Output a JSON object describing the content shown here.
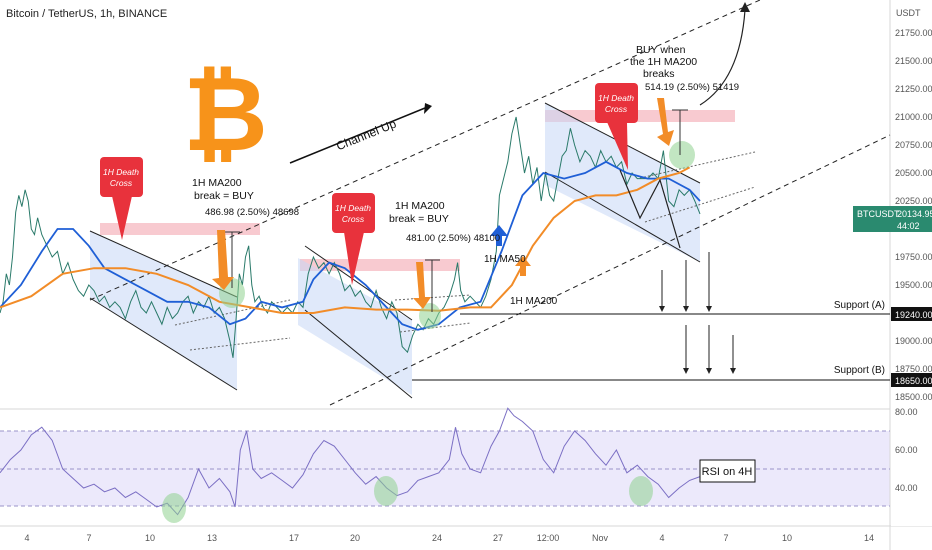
{
  "header": {
    "symbol_title": "Bitcoin / TetherUS, 1h, BINANCE"
  },
  "currency_unit": "USDT",
  "colors": {
    "price": "#2a7a6a",
    "ma50": "#1f5fd6",
    "ma200": "#f28c28",
    "death_cross": "#e8323c",
    "zone": "#f4a6b0",
    "channel_fill": "#c7d7f5",
    "rsi": "#7b6fc4",
    "rsi_band": "#ece9fb",
    "buy_circle": "#8fd18f"
  },
  "price_axis": {
    "ticks": [
      "21750.00",
      "21500.00",
      "21250.00",
      "21000.00",
      "20750.00",
      "20500.00",
      "20250.00",
      "19750.00",
      "19500.00",
      "19000.00",
      "18750.00",
      "18500.00"
    ],
    "current_symbol": "BTCUSDT",
    "current_price": "20134.95",
    "countdown": "44:02",
    "support_a_price": "19240.00",
    "support_b_price": "18650.00"
  },
  "rsi_axis": {
    "ticks": [
      "80.00",
      "60.00",
      "40.00"
    ]
  },
  "time_axis": {
    "ticks": [
      "4",
      "7",
      "10",
      "13",
      "17",
      "20",
      "24",
      "27",
      "12:00",
      "Nov",
      "4",
      "7",
      "10",
      "14"
    ]
  },
  "annotations": {
    "death_cross_1": [
      "1H Death",
      "Cross"
    ],
    "death_cross_2": [
      "1H Death",
      "Cross"
    ],
    "death_cross_3": [
      "1H Death",
      "Cross"
    ],
    "ma200_break_1": [
      "1H MA200",
      "break = BUY"
    ],
    "ma200_break_2": [
      "1H MA200",
      "break = BUY"
    ],
    "measure_1": "486.98 (2.50%) 48698",
    "measure_2": "481.00 (2.50%) 48100",
    "measure_3": "514.19 (2.50%) 51419",
    "buy_when": [
      "BUY when",
      "the 1H MA200",
      "breaks"
    ],
    "channel_up": "Channel Up",
    "ma50_label": "1H MA50",
    "ma200_label": "1H MA200",
    "support_a": "Support (A)",
    "support_b": "Support (B)",
    "rsi_box": "RSI on 4H"
  },
  "chart_data": {
    "type": "line",
    "title": "Bitcoin / TetherUS, 1h, BINANCE",
    "x_labels": [
      "4",
      "7",
      "10",
      "13",
      "17",
      "20",
      "24",
      "27",
      "12:00",
      "Nov",
      "4",
      "7",
      "10",
      "14"
    ],
    "ylim": [
      18400,
      22000
    ],
    "series": [
      {
        "name": "BTCUSDT",
        "points": [
          [
            0,
            19250
          ],
          [
            3,
            19350
          ],
          [
            6,
            19600
          ],
          [
            9,
            19500
          ],
          [
            12,
            19750
          ],
          [
            15,
            20150
          ],
          [
            18,
            20300
          ],
          [
            21,
            20200
          ],
          [
            24,
            20350
          ],
          [
            27,
            20250
          ],
          [
            30,
            20000
          ],
          [
            33,
            19950
          ],
          [
            36,
            20100
          ],
          [
            40,
            19950
          ],
          [
            45,
            19850
          ],
          [
            50,
            19750
          ],
          [
            55,
            19800
          ],
          [
            60,
            19600
          ],
          [
            65,
            19700
          ],
          [
            70,
            19550
          ],
          [
            75,
            19450
          ],
          [
            80,
            19400
          ],
          [
            85,
            19500
          ],
          [
            90,
            19450
          ],
          [
            95,
            19350
          ],
          [
            100,
            19400
          ],
          [
            105,
            19300
          ],
          [
            110,
            19350
          ],
          [
            115,
            19300
          ],
          [
            120,
            19200
          ],
          [
            125,
            19350
          ],
          [
            130,
            19450
          ],
          [
            135,
            19300
          ],
          [
            140,
            19250
          ],
          [
            145,
            19350
          ],
          [
            150,
            19250
          ],
          [
            155,
            19150
          ],
          [
            160,
            19300
          ],
          [
            165,
            19200
          ],
          [
            170,
            19250
          ],
          [
            175,
            19350
          ],
          [
            180,
            19400
          ],
          [
            185,
            19250
          ],
          [
            190,
            19350
          ],
          [
            195,
            19300
          ],
          [
            200,
            19400
          ],
          [
            205,
            19250
          ],
          [
            210,
            19300
          ],
          [
            215,
            19200
          ],
          [
            220,
            19000
          ],
          [
            223,
            18850
          ],
          [
            226,
            19200
          ],
          [
            229,
            19600
          ],
          [
            232,
            19500
          ],
          [
            235,
            19750
          ],
          [
            238,
            19850
          ],
          [
            241,
            19500
          ],
          [
            244,
            19350
          ],
          [
            248,
            19400
          ],
          [
            252,
            19300
          ],
          [
            256,
            19250
          ],
          [
            260,
            19350
          ],
          [
            265,
            19300
          ],
          [
            270,
            19250
          ],
          [
            275,
            19300
          ],
          [
            280,
            19250
          ],
          [
            285,
            19350
          ],
          [
            290,
            19300
          ],
          [
            295,
            19600
          ],
          [
            300,
            19750
          ],
          [
            305,
            19650
          ],
          [
            310,
            19700
          ],
          [
            315,
            19600
          ],
          [
            320,
            19700
          ],
          [
            325,
            19600
          ],
          [
            330,
            19450
          ],
          [
            335,
            19500
          ],
          [
            340,
            19400
          ],
          [
            345,
            19450
          ],
          [
            350,
            19350
          ],
          [
            355,
            19300
          ],
          [
            360,
            19450
          ],
          [
            365,
            19300
          ],
          [
            370,
            19200
          ],
          [
            375,
            19350
          ],
          [
            380,
            19250
          ],
          [
            385,
            18950
          ],
          [
            390,
            18900
          ],
          [
            395,
            19050
          ],
          [
            400,
            19150
          ],
          [
            405,
            19100
          ],
          [
            410,
            19200
          ],
          [
            415,
            19150
          ],
          [
            420,
            19250
          ],
          [
            425,
            19300
          ],
          [
            430,
            19400
          ],
          [
            435,
            19550
          ],
          [
            438,
            19700
          ],
          [
            441,
            19450
          ],
          [
            445,
            19350
          ],
          [
            450,
            19400
          ],
          [
            455,
            19350
          ],
          [
            460,
            19300
          ],
          [
            465,
            19400
          ],
          [
            470,
            19550
          ],
          [
            475,
            19800
          ],
          [
            478,
            20300
          ],
          [
            482,
            20450
          ],
          [
            486,
            20600
          ],
          [
            490,
            20850
          ],
          [
            494,
            21000
          ],
          [
            498,
            20750
          ],
          [
            502,
            20500
          ],
          [
            506,
            20650
          ],
          [
            510,
            20400
          ],
          [
            514,
            20550
          ],
          [
            518,
            20250
          ],
          [
            522,
            20500
          ],
          [
            526,
            20300
          ],
          [
            530,
            20250
          ],
          [
            534,
            20450
          ],
          [
            538,
            20650
          ],
          [
            542,
            20700
          ],
          [
            546,
            20900
          ],
          [
            550,
            20750
          ],
          [
            555,
            20600
          ],
          [
            560,
            20700
          ],
          [
            565,
            20650
          ],
          [
            570,
            20550
          ],
          [
            575,
            20700
          ],
          [
            580,
            20600
          ],
          [
            585,
            20650
          ],
          [
            590,
            20550
          ],
          [
            595,
            20600
          ],
          [
            600,
            20400
          ],
          [
            605,
            20500
          ],
          [
            610,
            20450
          ],
          [
            615,
            20450
          ],
          [
            620,
            20450
          ],
          [
            625,
            20500
          ],
          [
            630,
            20450
          ],
          [
            635,
            20700
          ],
          [
            640,
            20250
          ],
          [
            645,
            20200
          ],
          [
            650,
            20350
          ],
          [
            655,
            20300
          ],
          [
            660,
            20350
          ],
          [
            665,
            20250
          ],
          [
            670,
            20134.95
          ]
        ]
      },
      {
        "name": "1H MA50",
        "points": [
          [
            0,
            19300
          ],
          [
            20,
            19500
          ],
          [
            40,
            19800
          ],
          [
            55,
            20000
          ],
          [
            70,
            20000
          ],
          [
            85,
            19850
          ],
          [
            100,
            19650
          ],
          [
            120,
            19550
          ],
          [
            140,
            19450
          ],
          [
            160,
            19350
          ],
          [
            180,
            19350
          ],
          [
            200,
            19300
          ],
          [
            220,
            19150
          ],
          [
            235,
            19200
          ],
          [
            250,
            19350
          ],
          [
            270,
            19300
          ],
          [
            290,
            19350
          ],
          [
            300,
            19550
          ],
          [
            315,
            19700
          ],
          [
            330,
            19650
          ],
          [
            350,
            19500
          ],
          [
            370,
            19300
          ],
          [
            385,
            19150
          ],
          [
            400,
            19100
          ],
          [
            420,
            19150
          ],
          [
            440,
            19300
          ],
          [
            460,
            19350
          ],
          [
            480,
            19800
          ],
          [
            500,
            20300
          ],
          [
            520,
            20500
          ],
          [
            540,
            20450
          ],
          [
            560,
            20500
          ],
          [
            580,
            20600
          ],
          [
            600,
            20500
          ],
          [
            620,
            20450
          ],
          [
            640,
            20450
          ],
          [
            660,
            20350
          ],
          [
            670,
            20250
          ]
        ]
      },
      {
        "name": "1H MA200",
        "points": [
          [
            0,
            19300
          ],
          [
            30,
            19400
          ],
          [
            60,
            19600
          ],
          [
            90,
            19650
          ],
          [
            120,
            19650
          ],
          [
            150,
            19600
          ],
          [
            180,
            19500
          ],
          [
            210,
            19350
          ],
          [
            240,
            19300
          ],
          [
            270,
            19250
          ],
          [
            300,
            19250
          ],
          [
            330,
            19300
          ],
          [
            360,
            19280
          ],
          [
            390,
            19280
          ],
          [
            420,
            19270
          ],
          [
            450,
            19300
          ],
          [
            470,
            19300
          ],
          [
            490,
            19500
          ],
          [
            510,
            19850
          ],
          [
            530,
            20100
          ],
          [
            550,
            20250
          ],
          [
            570,
            20300
          ],
          [
            590,
            20300
          ],
          [
            610,
            20350
          ],
          [
            630,
            20450
          ],
          [
            650,
            20500
          ],
          [
            660,
            20550
          ]
        ]
      }
    ]
  },
  "rsi_data": {
    "ylim": [
      20,
      85
    ],
    "overbought": 70,
    "mid": 50,
    "oversold": 30,
    "points": [
      [
        0,
        48
      ],
      [
        10,
        55
      ],
      [
        20,
        60
      ],
      [
        30,
        68
      ],
      [
        40,
        72
      ],
      [
        50,
        65
      ],
      [
        60,
        50
      ],
      [
        70,
        45
      ],
      [
        80,
        40
      ],
      [
        90,
        42
      ],
      [
        100,
        38
      ],
      [
        110,
        40
      ],
      [
        120,
        35
      ],
      [
        130,
        38
      ],
      [
        140,
        34
      ],
      [
        150,
        30
      ],
      [
        160,
        32
      ],
      [
        170,
        26
      ],
      [
        180,
        35
      ],
      [
        190,
        50
      ],
      [
        200,
        40
      ],
      [
        210,
        45
      ],
      [
        220,
        38
      ],
      [
        225,
        30
      ],
      [
        230,
        60
      ],
      [
        236,
        70
      ],
      [
        242,
        50
      ],
      [
        250,
        45
      ],
      [
        260,
        48
      ],
      [
        270,
        44
      ],
      [
        280,
        40
      ],
      [
        290,
        47
      ],
      [
        300,
        58
      ],
      [
        310,
        65
      ],
      [
        320,
        62
      ],
      [
        330,
        55
      ],
      [
        340,
        48
      ],
      [
        350,
        42
      ],
      [
        360,
        46
      ],
      [
        370,
        40
      ],
      [
        380,
        36
      ],
      [
        390,
        38
      ],
      [
        400,
        44
      ],
      [
        410,
        46
      ],
      [
        420,
        48
      ],
      [
        430,
        55
      ],
      [
        436,
        72
      ],
      [
        442,
        58
      ],
      [
        450,
        50
      ],
      [
        460,
        48
      ],
      [
        470,
        62
      ],
      [
        478,
        70
      ],
      [
        486,
        82
      ],
      [
        492,
        78
      ],
      [
        500,
        75
      ],
      [
        510,
        70
      ],
      [
        520,
        55
      ],
      [
        530,
        48
      ],
      [
        540,
        62
      ],
      [
        550,
        70
      ],
      [
        560,
        65
      ],
      [
        570,
        58
      ],
      [
        580,
        52
      ],
      [
        590,
        60
      ],
      [
        600,
        48
      ],
      [
        610,
        52
      ],
      [
        620,
        46
      ],
      [
        630,
        42
      ],
      [
        640,
        35
      ],
      [
        650,
        40
      ],
      [
        660,
        44
      ],
      [
        670,
        46
      ]
    ]
  }
}
